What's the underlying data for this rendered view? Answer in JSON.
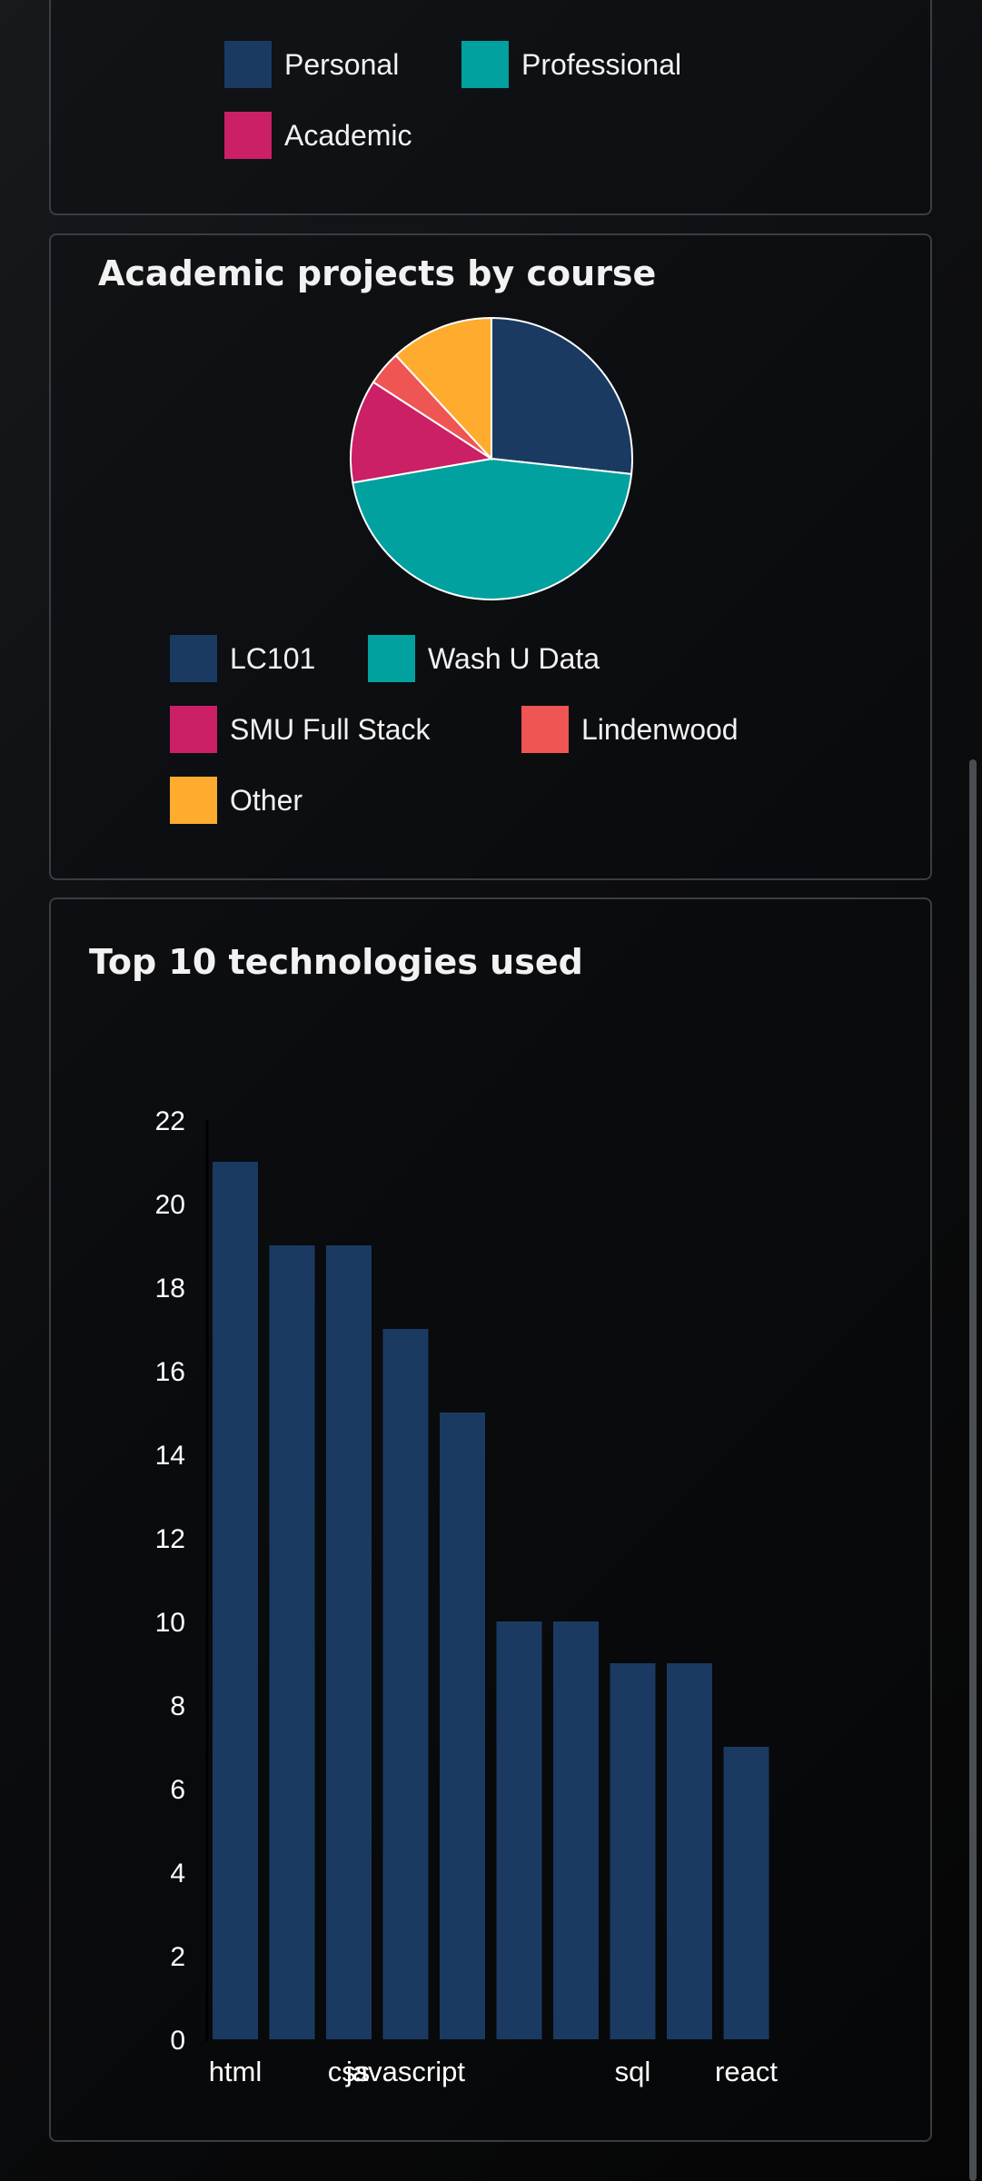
{
  "colors": {
    "personal": "#1a3a62",
    "professional": "#00a19f",
    "academic": "#cb1f66",
    "lindenwood": "#ee5553",
    "other": "#ffab2e",
    "bar": "#1a3a62"
  },
  "type_legend": {
    "items": [
      {
        "label": "Personal",
        "color": "#1a3a62"
      },
      {
        "label": "Professional",
        "color": "#00a19f"
      },
      {
        "label": "Academic",
        "color": "#cb1f66"
      }
    ]
  },
  "academic_card": {
    "title": "Academic projects by course"
  },
  "tech_card": {
    "title": "Top 10 technologies used"
  },
  "chart_data": [
    {
      "type": "pie",
      "title": "Academic projects by course",
      "categories": [
        "LC101",
        "Wash U Data",
        "SMU Full Stack",
        "Lindenwood",
        "Other"
      ],
      "values": [
        27,
        46,
        12,
        4,
        12
      ],
      "colors": [
        "#1a3a62",
        "#00a19f",
        "#cb1f66",
        "#ee5553",
        "#ffab2e"
      ],
      "legend": "bottom"
    },
    {
      "type": "bar",
      "title": "Top 10 technologies used",
      "categories": [
        "html",
        "",
        "css",
        "javascript",
        "",
        "",
        "",
        "sql",
        "",
        "react"
      ],
      "values": [
        21,
        19,
        19,
        17,
        15,
        10,
        10,
        9,
        9,
        7
      ],
      "ylim": [
        0,
        22
      ],
      "yticks": [
        "0",
        "2",
        "4",
        "6",
        "8",
        "10",
        "12",
        "14",
        "16",
        "18",
        "20",
        "22"
      ],
      "xlabel": "",
      "ylabel": "",
      "grid": false,
      "legend": "none"
    }
  ]
}
